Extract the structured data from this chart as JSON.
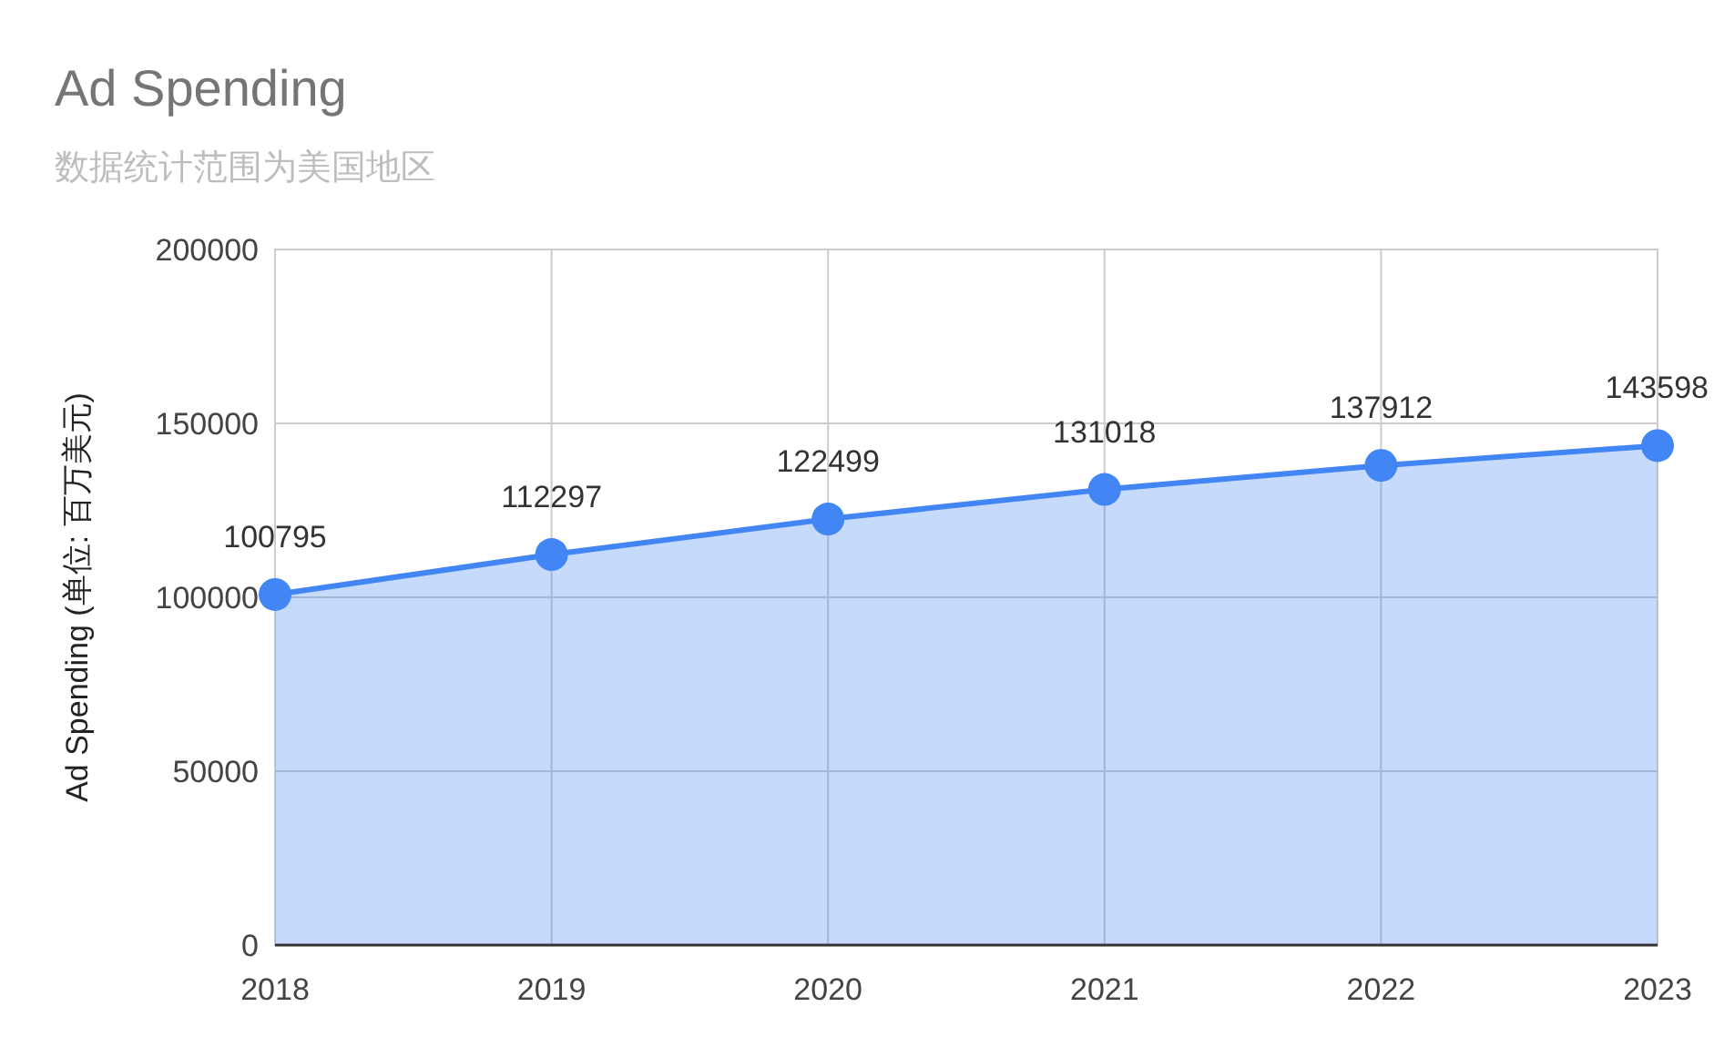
{
  "chart_data": {
    "type": "area",
    "title": "Ad Spending",
    "subtitle": "数据统计范围为美国地区",
    "ylabel": "Ad Spending (单位: 百万美元)",
    "x": [
      2018,
      2019,
      2020,
      2021,
      2022,
      2023
    ],
    "values": [
      100795,
      112297,
      122499,
      131018,
      137912,
      143598
    ],
    "color": "#4285f4",
    "xlim": [
      2018,
      2023
    ],
    "xticks": [
      2018,
      2019,
      2020,
      2021,
      2022,
      2023
    ],
    "ylim": [
      0,
      200000
    ],
    "yticks": [
      0,
      50000,
      100000,
      150000,
      200000
    ],
    "grid": true,
    "marker": "circle",
    "data_labels": true
  }
}
